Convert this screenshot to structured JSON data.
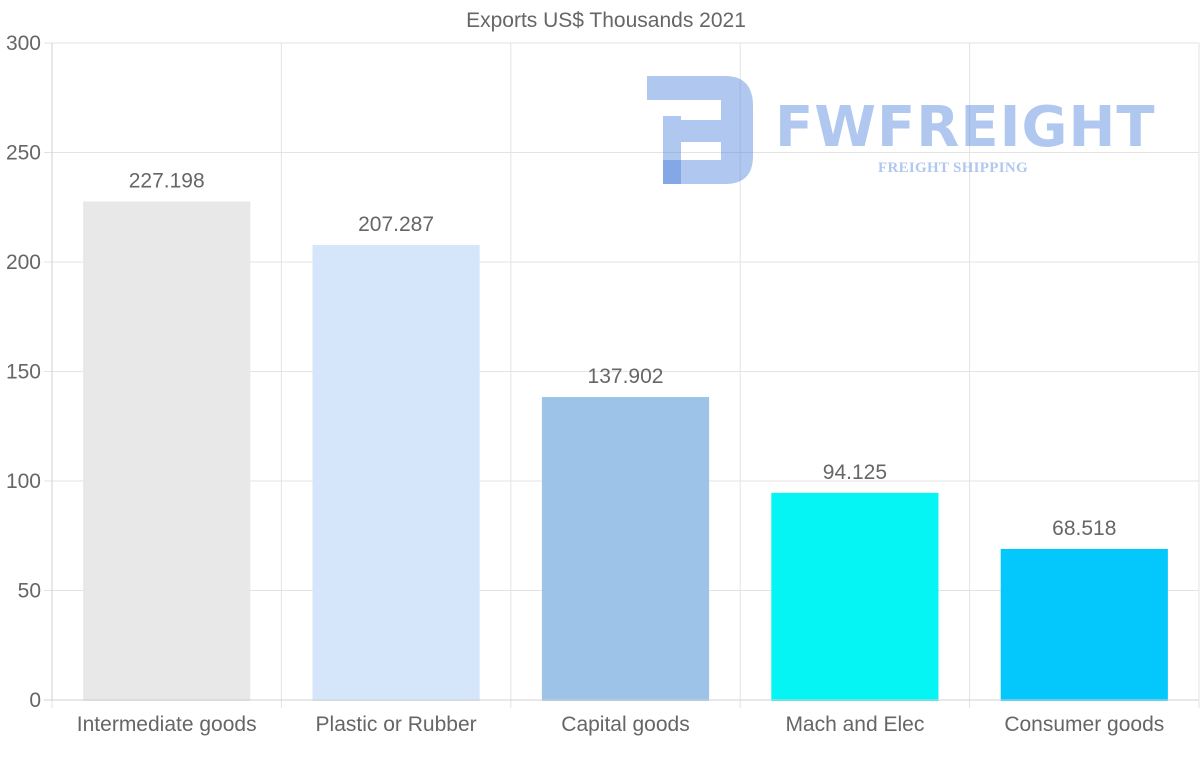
{
  "chart_data": {
    "type": "bar",
    "title": "Exports US$ Thousands 2021",
    "categories": [
      "Intermediate goods",
      "Plastic or Rubber",
      "Capital goods",
      "Mach and Elec",
      "Consumer goods"
    ],
    "values": [
      227.198,
      207.287,
      137.902,
      94.125,
      68.518
    ],
    "value_labels": [
      "227.198",
      "207.287",
      "137.902",
      "94.125",
      "68.518"
    ],
    "bar_colors": [
      "#e8e8e8",
      "#d6e6fa",
      "#9dc3e8",
      "#05f5f5",
      "#04c8fc"
    ],
    "ylim": [
      0,
      300
    ],
    "yticks": [
      "0",
      "50",
      "100",
      "150",
      "200",
      "250",
      "300"
    ],
    "grid": true,
    "xlabel": "",
    "ylabel": ""
  },
  "watermark": {
    "brand": "FWFREIGHT",
    "tagline": "FREIGHT SHIPPING",
    "color": "#5082dc"
  }
}
